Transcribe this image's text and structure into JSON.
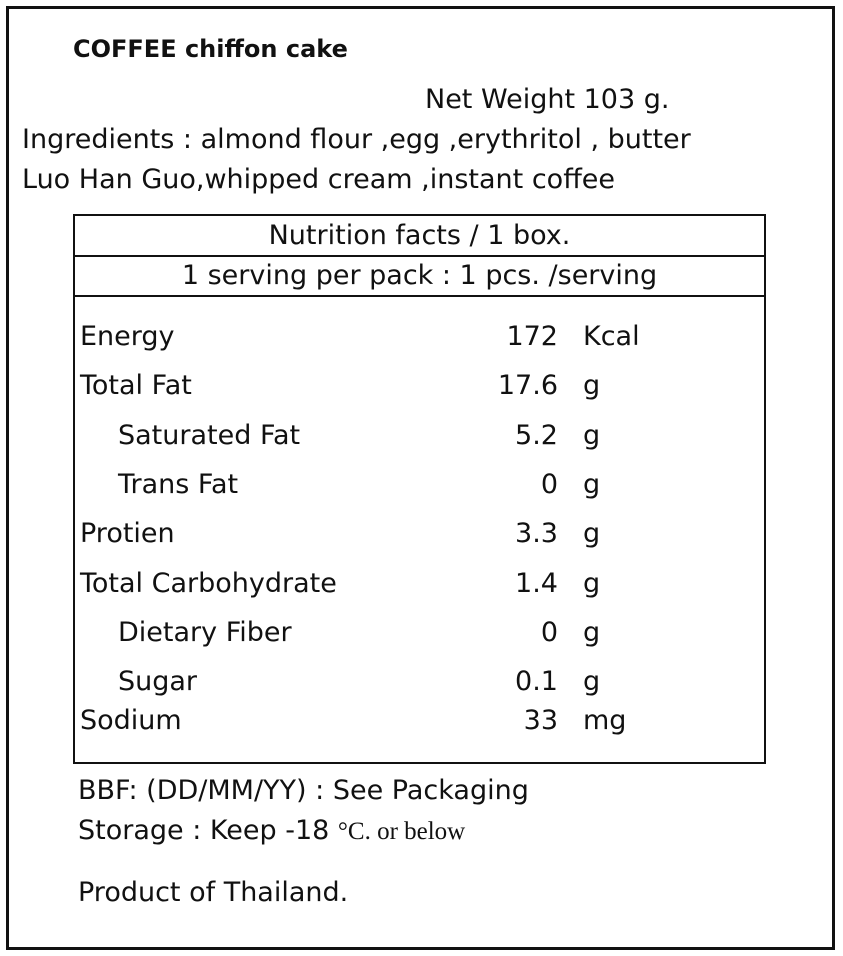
{
  "product_name": "COFFEE chiffon cake",
  "net_weight": "Net Weight  103  g.",
  "ingredients": {
    "line1": "Ingredients : almond flour ,egg ,erythritol , butter",
    "line2": "Luo Han Guo,whipped cream ,instant coffee"
  },
  "nutrition": {
    "header": "Nutrition facts / 1 box.",
    "serving": "1 serving per pack : 1 pcs. /serving",
    "rows": [
      {
        "name": "Energy",
        "value": "172",
        "unit": "Kcal"
      },
      {
        "name": "Total Fat",
        "value": "17.6",
        "unit": "g"
      },
      {
        "name": "Saturated Fat",
        "value": "5.2",
        "unit": "g"
      },
      {
        "name": "Trans Fat",
        "value": "0",
        "unit": "g"
      },
      {
        "name": "Protien",
        "value": "3.3",
        "unit": "g"
      },
      {
        "name": "Total Carbohydrate",
        "value": "1.4",
        "unit": "g"
      },
      {
        "name": "Dietary Fiber",
        "value": "0",
        "unit": "g"
      },
      {
        "name": "Sugar",
        "value": "0.1",
        "unit": "g"
      },
      {
        "name": "Sodium",
        "value": "33",
        "unit": "mg"
      }
    ]
  },
  "footer": {
    "bbf": "BBF: (DD/MM/YY) : See Packaging",
    "storage_prefix": "Storage : Keep -18 ",
    "storage_suffix": "°C. or below",
    "origin": "Product of Thailand."
  }
}
